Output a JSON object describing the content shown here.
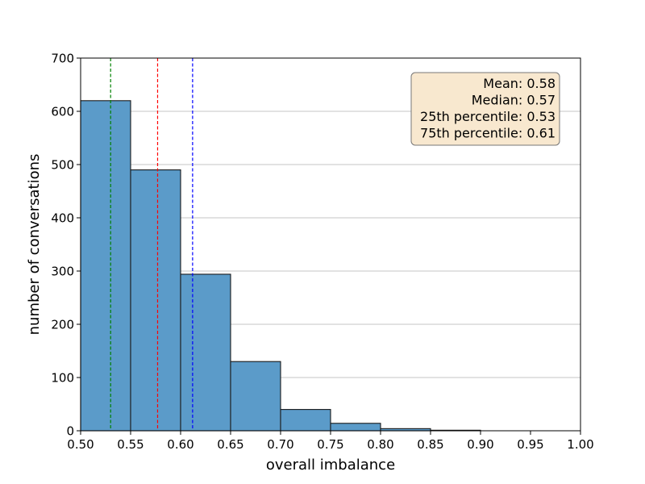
{
  "chart_data": {
    "type": "bar",
    "subtype": "histogram",
    "title": "",
    "xlabel": "overall imbalance",
    "ylabel": "number of conversations",
    "xlim": [
      0.5,
      1.0
    ],
    "ylim": [
      0,
      700
    ],
    "xticks": [
      "0.50",
      "0.55",
      "0.60",
      "0.65",
      "0.70",
      "0.75",
      "0.80",
      "0.85",
      "0.90",
      "0.95",
      "1.00"
    ],
    "yticks": [
      "0",
      "100",
      "200",
      "300",
      "400",
      "500",
      "600",
      "700"
    ],
    "grid": "horizontal",
    "bins": [
      {
        "start": 0.5,
        "end": 0.55,
        "count": 620
      },
      {
        "start": 0.55,
        "end": 0.6,
        "count": 490
      },
      {
        "start": 0.6,
        "end": 0.65,
        "count": 294
      },
      {
        "start": 0.65,
        "end": 0.7,
        "count": 130
      },
      {
        "start": 0.7,
        "end": 0.75,
        "count": 40
      },
      {
        "start": 0.75,
        "end": 0.8,
        "count": 14
      },
      {
        "start": 0.8,
        "end": 0.85,
        "count": 4
      },
      {
        "start": 0.85,
        "end": 0.9,
        "count": 1
      },
      {
        "start": 0.9,
        "end": 0.95,
        "count": 0
      },
      {
        "start": 0.95,
        "end": 1.0,
        "count": 0
      }
    ],
    "bar_color": "#5b9bc9",
    "reference_lines": [
      {
        "x": 0.53,
        "color": "#008000",
        "style": "dashed"
      },
      {
        "x": 0.577,
        "color": "#ff0000",
        "style": "dashed"
      },
      {
        "x": 0.612,
        "color": "#0000ff",
        "style": "dashed"
      }
    ],
    "stats_box": {
      "placement": "top-right",
      "lines": [
        "Mean: 0.58",
        "Median: 0.57",
        "25th percentile: 0.53",
        "75th percentile: 0.61"
      ],
      "background": "#f8e8cf"
    }
  }
}
